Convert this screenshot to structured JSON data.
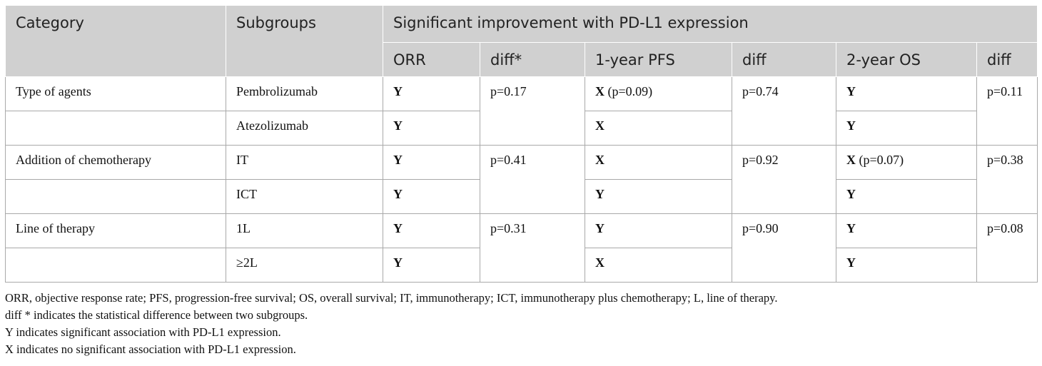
{
  "header": {
    "category": "Category",
    "subgroups": "Subgroups",
    "span_title": "Significant improvement with PD-L1 expression",
    "columns": [
      "ORR",
      "diff*",
      "1-year PFS",
      "diff",
      "2-year OS",
      "diff"
    ]
  },
  "groups": [
    {
      "category": "Type of agents",
      "orr_diff": "p=0.17",
      "pfs_diff": "p=0.74",
      "os_diff": "p=0.11",
      "rows": [
        {
          "subgroup": "Pembrolizumab",
          "orr": "Y",
          "orr_note": "",
          "pfs": "X",
          "pfs_note": " (p=0.09)",
          "os": "Y",
          "os_note": ""
        },
        {
          "subgroup": "Atezolizumab",
          "orr": "Y",
          "orr_note": "",
          "pfs": "X",
          "pfs_note": "",
          "os": "Y",
          "os_note": ""
        }
      ]
    },
    {
      "category": "Addition of chemotherapy",
      "orr_diff": "p=0.41",
      "pfs_diff": "p=0.92",
      "os_diff": "p=0.38",
      "rows": [
        {
          "subgroup": "IT",
          "orr": "Y",
          "orr_note": "",
          "pfs": "X",
          "pfs_note": "",
          "os": "X",
          "os_note": " (p=0.07)"
        },
        {
          "subgroup": "ICT",
          "orr": "Y",
          "orr_note": "",
          "pfs": "Y",
          "pfs_note": "",
          "os": "Y",
          "os_note": ""
        }
      ]
    },
    {
      "category": "Line of therapy",
      "orr_diff": "p=0.31",
      "pfs_diff": "p=0.90",
      "os_diff": "p=0.08",
      "rows": [
        {
          "subgroup": "1L",
          "orr": "Y",
          "orr_note": "",
          "pfs": "Y",
          "pfs_note": "",
          "os": "Y",
          "os_note": ""
        },
        {
          "subgroup": "≥2L",
          "orr": "Y",
          "orr_note": "",
          "pfs": "X",
          "pfs_note": "",
          "os": "Y",
          "os_note": ""
        }
      ]
    }
  ],
  "footnotes": [
    "ORR, objective response rate; PFS, progression-free survival; OS, overall survival; IT, immunotherapy; ICT, immunotherapy plus chemotherapy; L, line of therapy.",
    "diff * indicates the statistical difference between two subgroups.",
    "Y indicates significant association with PD-L1 expression.",
    "X indicates no significant association with PD-L1 expression."
  ]
}
